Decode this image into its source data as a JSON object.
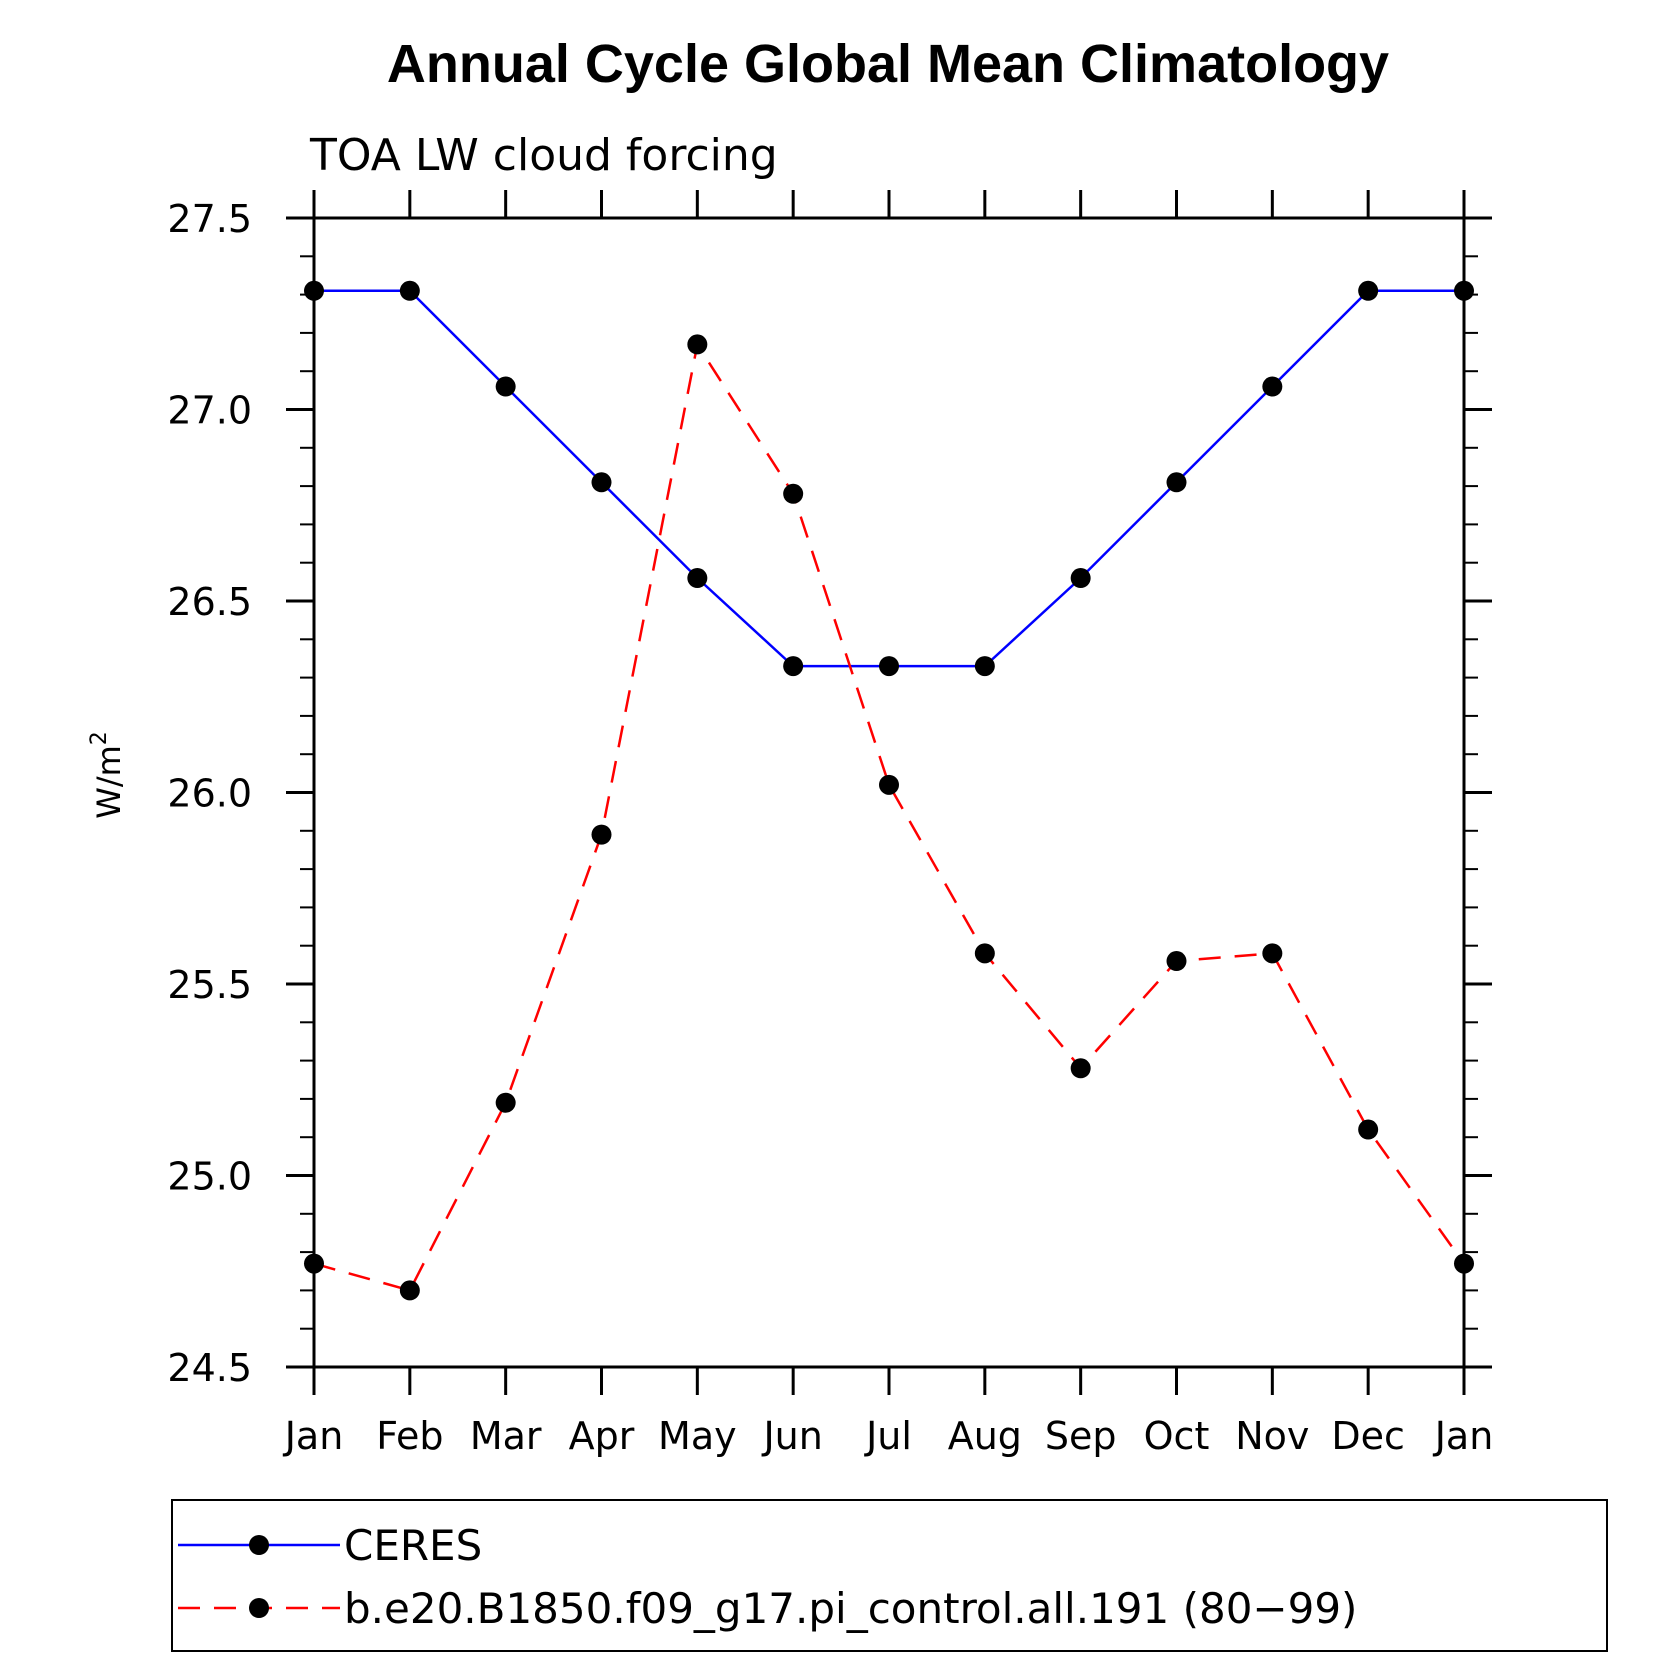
{
  "chart_data": {
    "type": "line",
    "title": "Annual Cycle Global Mean Climatology",
    "subtitle": "TOA LW cloud forcing",
    "ylabel": "W/m",
    "ylabel_superscript": "2",
    "xlabel": "",
    "categories": [
      "Jan",
      "Feb",
      "Mar",
      "Apr",
      "May",
      "Jun",
      "Jul",
      "Aug",
      "Sep",
      "Oct",
      "Nov",
      "Dec",
      "Jan"
    ],
    "ylim": [
      24.5,
      27.5
    ],
    "yticks": [
      "24.5",
      "25.0",
      "25.5",
      "26.0",
      "26.5",
      "27.0",
      "27.5"
    ],
    "grid": false,
    "legend_position": "bottom",
    "series": [
      {
        "name": "CERES",
        "color": "#0000ff",
        "dash": "solid",
        "values": [
          27.31,
          27.31,
          27.06,
          26.81,
          26.56,
          26.33,
          26.33,
          26.33,
          26.56,
          26.81,
          27.06,
          27.31,
          27.31
        ]
      },
      {
        "name": "b.e20.B1850.f09_g17.pi_control.all.191 (80−99)",
        "color": "#ff0000",
        "dash": "dashed",
        "values": [
          24.77,
          24.7,
          25.19,
          25.89,
          27.17,
          26.78,
          26.02,
          25.58,
          25.28,
          25.56,
          25.58,
          25.12,
          24.77
        ]
      }
    ]
  }
}
